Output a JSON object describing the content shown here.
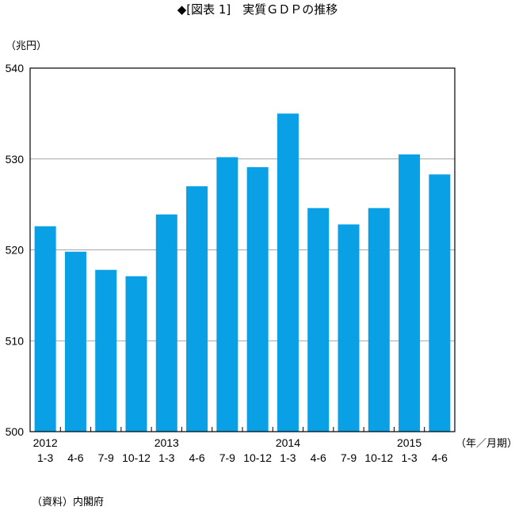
{
  "chart_data": {
    "type": "bar",
    "title": "◆[図表 1]　実質ＧＤＰの推移",
    "ylabel": "（兆円）",
    "xlabel": "（年／月期）",
    "source": "（資料）内閣府",
    "ylim": [
      500,
      540
    ],
    "yticks": [
      "500",
      "510",
      "520",
      "530",
      "540"
    ],
    "years": [
      {
        "label": "2012",
        "index": 0
      },
      {
        "label": "2013",
        "index": 4
      },
      {
        "label": "2014",
        "index": 8
      },
      {
        "label": "2015",
        "index": 12
      }
    ],
    "categories": [
      "1-3",
      "4-6",
      "7-9",
      "10-12",
      "1-3",
      "4-6",
      "7-9",
      "10-12",
      "1-3",
      "4-6",
      "7-9",
      "10-12",
      "1-3",
      "4-6"
    ],
    "values": [
      522.6,
      519.8,
      517.8,
      517.1,
      523.9,
      527.0,
      530.2,
      529.1,
      535.0,
      524.6,
      522.8,
      524.6,
      530.5,
      528.3
    ],
    "bar_color": "#0aa0e6",
    "grid": true
  }
}
